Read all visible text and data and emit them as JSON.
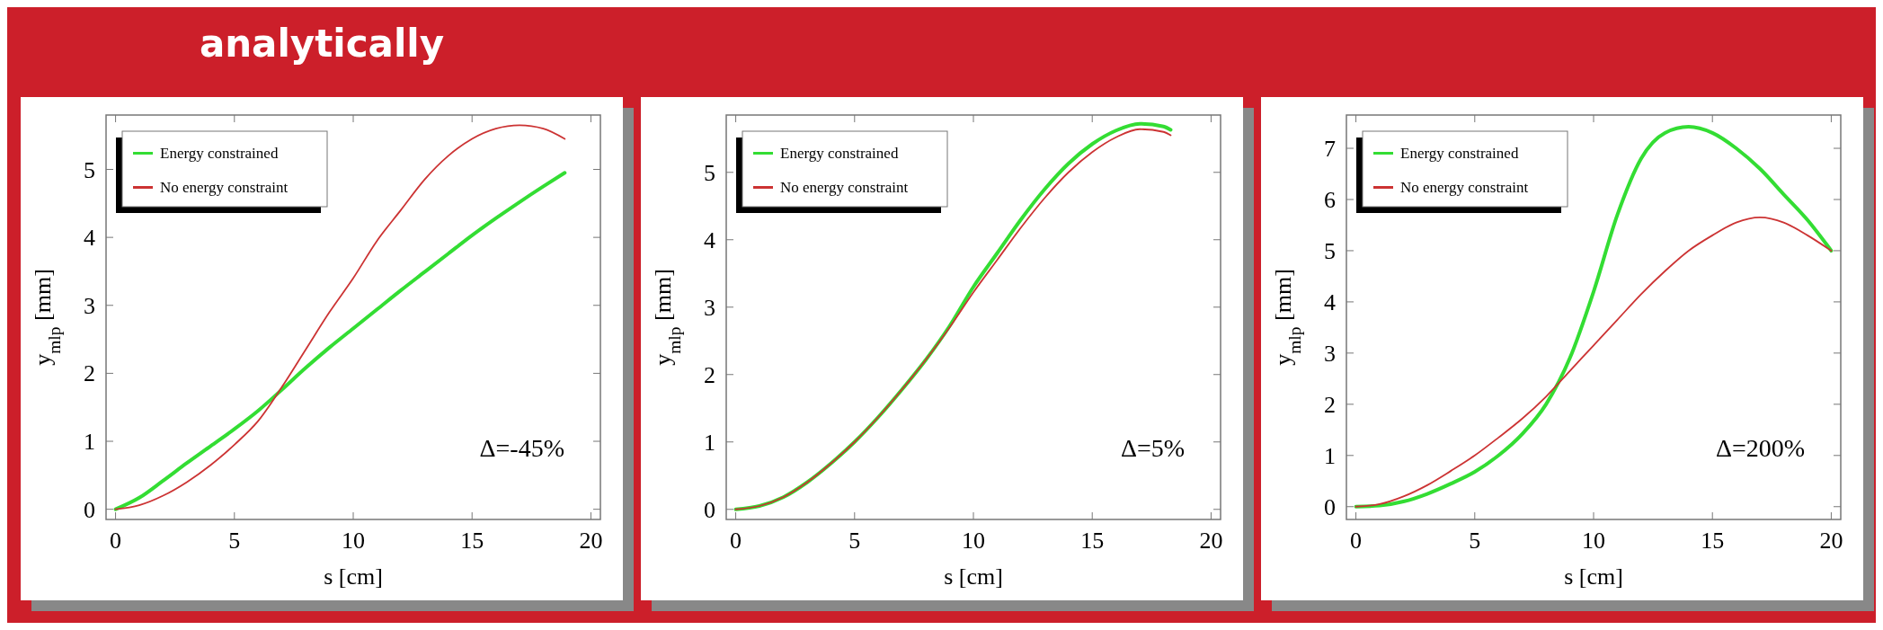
{
  "chart_data": [
    {
      "type": "line",
      "title": "analytically",
      "xlabel": "s [cm]",
      "ylabel": "y$_{mlp}$ [mm]",
      "xlim": [
        -0.4,
        20.4
      ],
      "ylim": [
        -0.15,
        5.8
      ],
      "xticks": [
        0,
        5,
        10,
        15,
        20
      ],
      "yticks": [
        0,
        1,
        2,
        3,
        4,
        5
      ],
      "legend": "top left",
      "grid": false,
      "annotations": [
        "Δ=-45%"
      ],
      "x": [
        0,
        1,
        2,
        3,
        4,
        5,
        6,
        7,
        8,
        9,
        10,
        11,
        12,
        13,
        14,
        15,
        16,
        17,
        18,
        18.9
      ],
      "series": [
        {
          "name": "Energy constrained",
          "color": "#33dd33",
          "values": [
            0,
            0.17,
            0.42,
            0.68,
            0.93,
            1.18,
            1.45,
            1.76,
            2.08,
            2.38,
            2.66,
            2.94,
            3.22,
            3.49,
            3.76,
            4.03,
            4.28,
            4.52,
            4.75,
            4.95
          ]
        },
        {
          "name": "No energy constraint",
          "color": "#cc3333",
          "values": [
            0,
            0.06,
            0.2,
            0.4,
            0.65,
            0.95,
            1.3,
            1.8,
            2.35,
            2.9,
            3.4,
            3.95,
            4.4,
            4.85,
            5.2,
            5.45,
            5.6,
            5.65,
            5.6,
            5.45
          ]
        }
      ]
    },
    {
      "type": "line",
      "xlabel": "s [cm]",
      "ylabel": "y$_{mlp}$ [mm]",
      "xlim": [
        -0.4,
        20.4
      ],
      "ylim": [
        -0.15,
        5.85
      ],
      "xticks": [
        0,
        5,
        10,
        15,
        20
      ],
      "yticks": [
        0,
        1,
        2,
        3,
        4,
        5
      ],
      "legend": "top left",
      "grid": false,
      "annotations": [
        "Δ=5%"
      ],
      "x": [
        0,
        1,
        2,
        3,
        4,
        5,
        6,
        7,
        8,
        9,
        10,
        11,
        12,
        13,
        14,
        15,
        16,
        17,
        18,
        18.3
      ],
      "series": [
        {
          "name": "Energy constrained",
          "color": "#33dd33",
          "values": [
            0,
            0.05,
            0.18,
            0.4,
            0.68,
            1.0,
            1.37,
            1.78,
            2.22,
            2.72,
            3.3,
            3.8,
            4.3,
            4.75,
            5.13,
            5.42,
            5.62,
            5.72,
            5.68,
            5.63
          ]
        },
        {
          "name": "No energy constraint",
          "color": "#cc3333",
          "values": [
            0,
            0.05,
            0.18,
            0.4,
            0.68,
            1.0,
            1.37,
            1.78,
            2.22,
            2.7,
            3.22,
            3.7,
            4.18,
            4.62,
            5.0,
            5.3,
            5.52,
            5.64,
            5.6,
            5.55
          ]
        }
      ]
    },
    {
      "type": "line",
      "xlabel": "s [cm]",
      "ylabel": "y$_{mlp}$ [mm]",
      "xlim": [
        -0.4,
        20.4
      ],
      "ylim": [
        -0.25,
        7.65
      ],
      "xticks": [
        0,
        5,
        10,
        15,
        20
      ],
      "yticks": [
        0,
        1,
        2,
        3,
        4,
        5,
        6,
        7
      ],
      "legend": "top left",
      "grid": false,
      "annotations": [
        "Δ=200%"
      ],
      "x": [
        0,
        1,
        2,
        3,
        4,
        5,
        6,
        7,
        8,
        9,
        10,
        11,
        12,
        13,
        14,
        15,
        16,
        17,
        18,
        19,
        20
      ],
      "series": [
        {
          "name": "Energy constrained",
          "color": "#33dd33",
          "values": [
            0,
            0.02,
            0.1,
            0.25,
            0.45,
            0.68,
            1.0,
            1.42,
            2.0,
            2.9,
            4.2,
            5.7,
            6.8,
            7.3,
            7.42,
            7.3,
            7.0,
            6.6,
            6.1,
            5.6,
            5.0
          ]
        },
        {
          "name": "No energy constraint",
          "color": "#cc3333",
          "values": [
            0,
            0.05,
            0.2,
            0.42,
            0.7,
            1.0,
            1.35,
            1.72,
            2.15,
            2.65,
            3.15,
            3.65,
            4.15,
            4.6,
            5.0,
            5.3,
            5.55,
            5.65,
            5.55,
            5.3,
            5.0
          ]
        }
      ]
    }
  ]
}
